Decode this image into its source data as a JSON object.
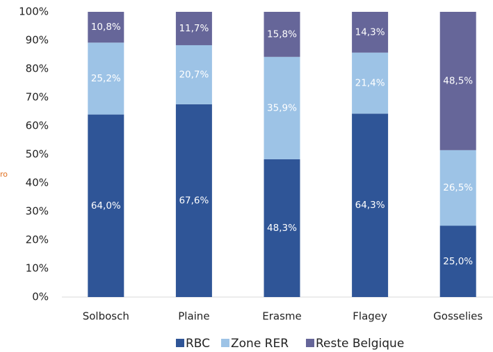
{
  "chart_data": {
    "type": "stacked_bar_100",
    "annotation": "ro",
    "categories": [
      "Solbosch",
      "Plaine",
      "Erasme",
      "Flagey",
      "Gosselies"
    ],
    "series": [
      {
        "name": "RBC",
        "color": "#2f5597",
        "values": [
          64.0,
          67.6,
          48.3,
          64.3,
          25.0
        ],
        "value_labels": [
          "64,0%",
          "67,6%",
          "48,3%",
          "64,3%",
          "25,0%"
        ]
      },
      {
        "name": "Zone RER",
        "color": "#9dc3e6",
        "values": [
          25.2,
          20.7,
          35.9,
          21.4,
          26.5
        ],
        "value_labels": [
          "25,2%",
          "20,7%",
          "35,9%",
          "21,4%",
          "26,5%"
        ]
      },
      {
        "name": "Reste Belgique",
        "color": "#666699",
        "values": [
          10.8,
          11.7,
          15.8,
          14.3,
          48.5
        ],
        "value_labels": [
          "10,8%",
          "11,7%",
          "15,8%",
          "14,3%",
          "48,5%"
        ]
      }
    ],
    "ylim": [
      0,
      100
    ],
    "yticks": [
      {
        "value": 0,
        "label": "0%"
      },
      {
        "value": 10,
        "label": "10%"
      },
      {
        "value": 20,
        "label": "20%"
      },
      {
        "value": 30,
        "label": "30%"
      },
      {
        "value": 40,
        "label": "40%"
      },
      {
        "value": 50,
        "label": "50%"
      },
      {
        "value": 60,
        "label": "60%"
      },
      {
        "value": 70,
        "label": "70%"
      },
      {
        "value": 80,
        "label": "80%"
      },
      {
        "value": 90,
        "label": "90%"
      },
      {
        "value": 100,
        "label": "100%"
      }
    ],
    "legend": "bottom"
  }
}
